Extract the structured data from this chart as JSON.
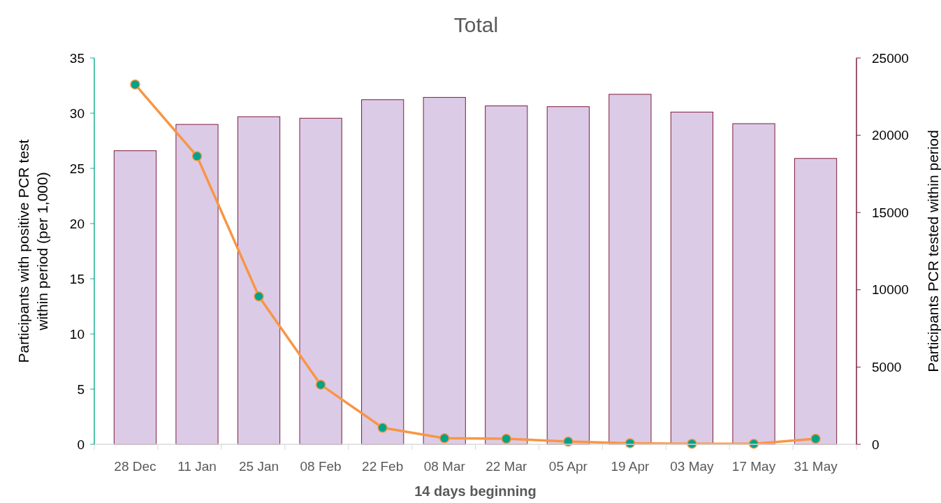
{
  "chart_data": {
    "type": "bar",
    "title": "Total",
    "xlabel": "14 days beginning",
    "ylabel": "Participants with positive PCR test\nwithin period (per 1,000)",
    "y2label": "Participants PCR tested within period",
    "categories": [
      "28 Dec",
      "11 Jan",
      "25 Jan",
      "08 Feb",
      "22 Feb",
      "08 Mar",
      "22 Mar",
      "05 Apr",
      "19 Apr",
      "03 May",
      "17 May",
      "31 May"
    ],
    "series": [
      {
        "axis": "y2",
        "color": "#dccbe6",
        "values": [
          19000,
          20700,
          21200,
          21100,
          22300,
          22450,
          21900,
          21850,
          22650,
          21500,
          20750,
          18500
        ]
      },
      {
        "type": "line",
        "axis": "y",
        "color": "#f79646",
        "values": [
          32.6,
          26.1,
          13.4,
          5.4,
          1.5,
          0.55,
          0.5,
          0.25,
          0.1,
          0.05,
          0.05,
          0.5
        ]
      }
    ],
    "ylim": [
      0,
      35
    ],
    "yticks": [
      0,
      5,
      10,
      15,
      20,
      25,
      30,
      35
    ],
    "y2lim": [
      0,
      25000
    ],
    "y2ticks": [
      0,
      5000,
      10000,
      15000,
      20000,
      25000
    ],
    "grid": false,
    "marker": "circle",
    "line_style": "solid"
  }
}
